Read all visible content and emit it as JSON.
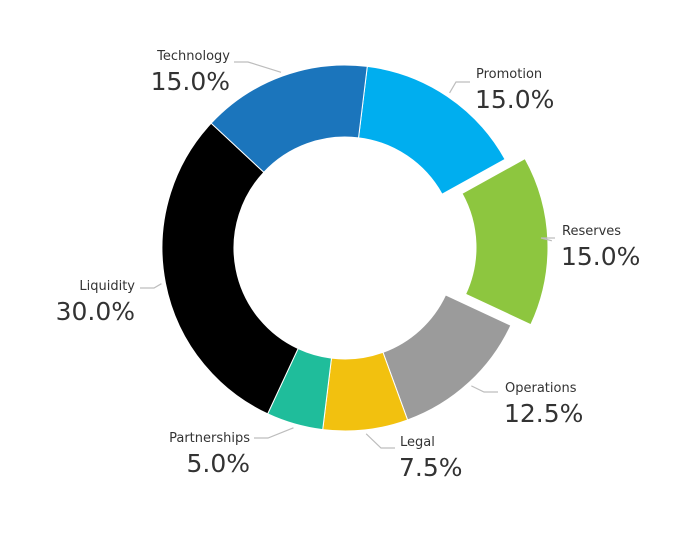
{
  "chart_data": {
    "type": "pie",
    "subtype": "donut",
    "title": "",
    "slices": [
      {
        "name": "Promotion",
        "value": 15.0,
        "label": "15.0%",
        "color": "#00aeef",
        "exploded": false
      },
      {
        "name": "Reserves",
        "value": 15.0,
        "label": "15.0%",
        "color": "#8dc63f",
        "exploded": true
      },
      {
        "name": "Operations",
        "value": 12.5,
        "label": "12.5%",
        "color": "#9b9b9b",
        "exploded": false
      },
      {
        "name": "Legal",
        "value": 7.5,
        "label": "7.5%",
        "color": "#f2c10f",
        "exploded": false
      },
      {
        "name": "Partnerships",
        "value": 5.0,
        "label": "5.0%",
        "color": "#1fbd9b",
        "exploded": false
      },
      {
        "name": "Liquidity",
        "value": 30.0,
        "label": "30.0%",
        "color": "#000000",
        "exploded": false
      },
      {
        "name": "Technology",
        "value": 15.0,
        "label": "15.0%",
        "color": "#1b75bc",
        "exploded": false
      }
    ]
  }
}
